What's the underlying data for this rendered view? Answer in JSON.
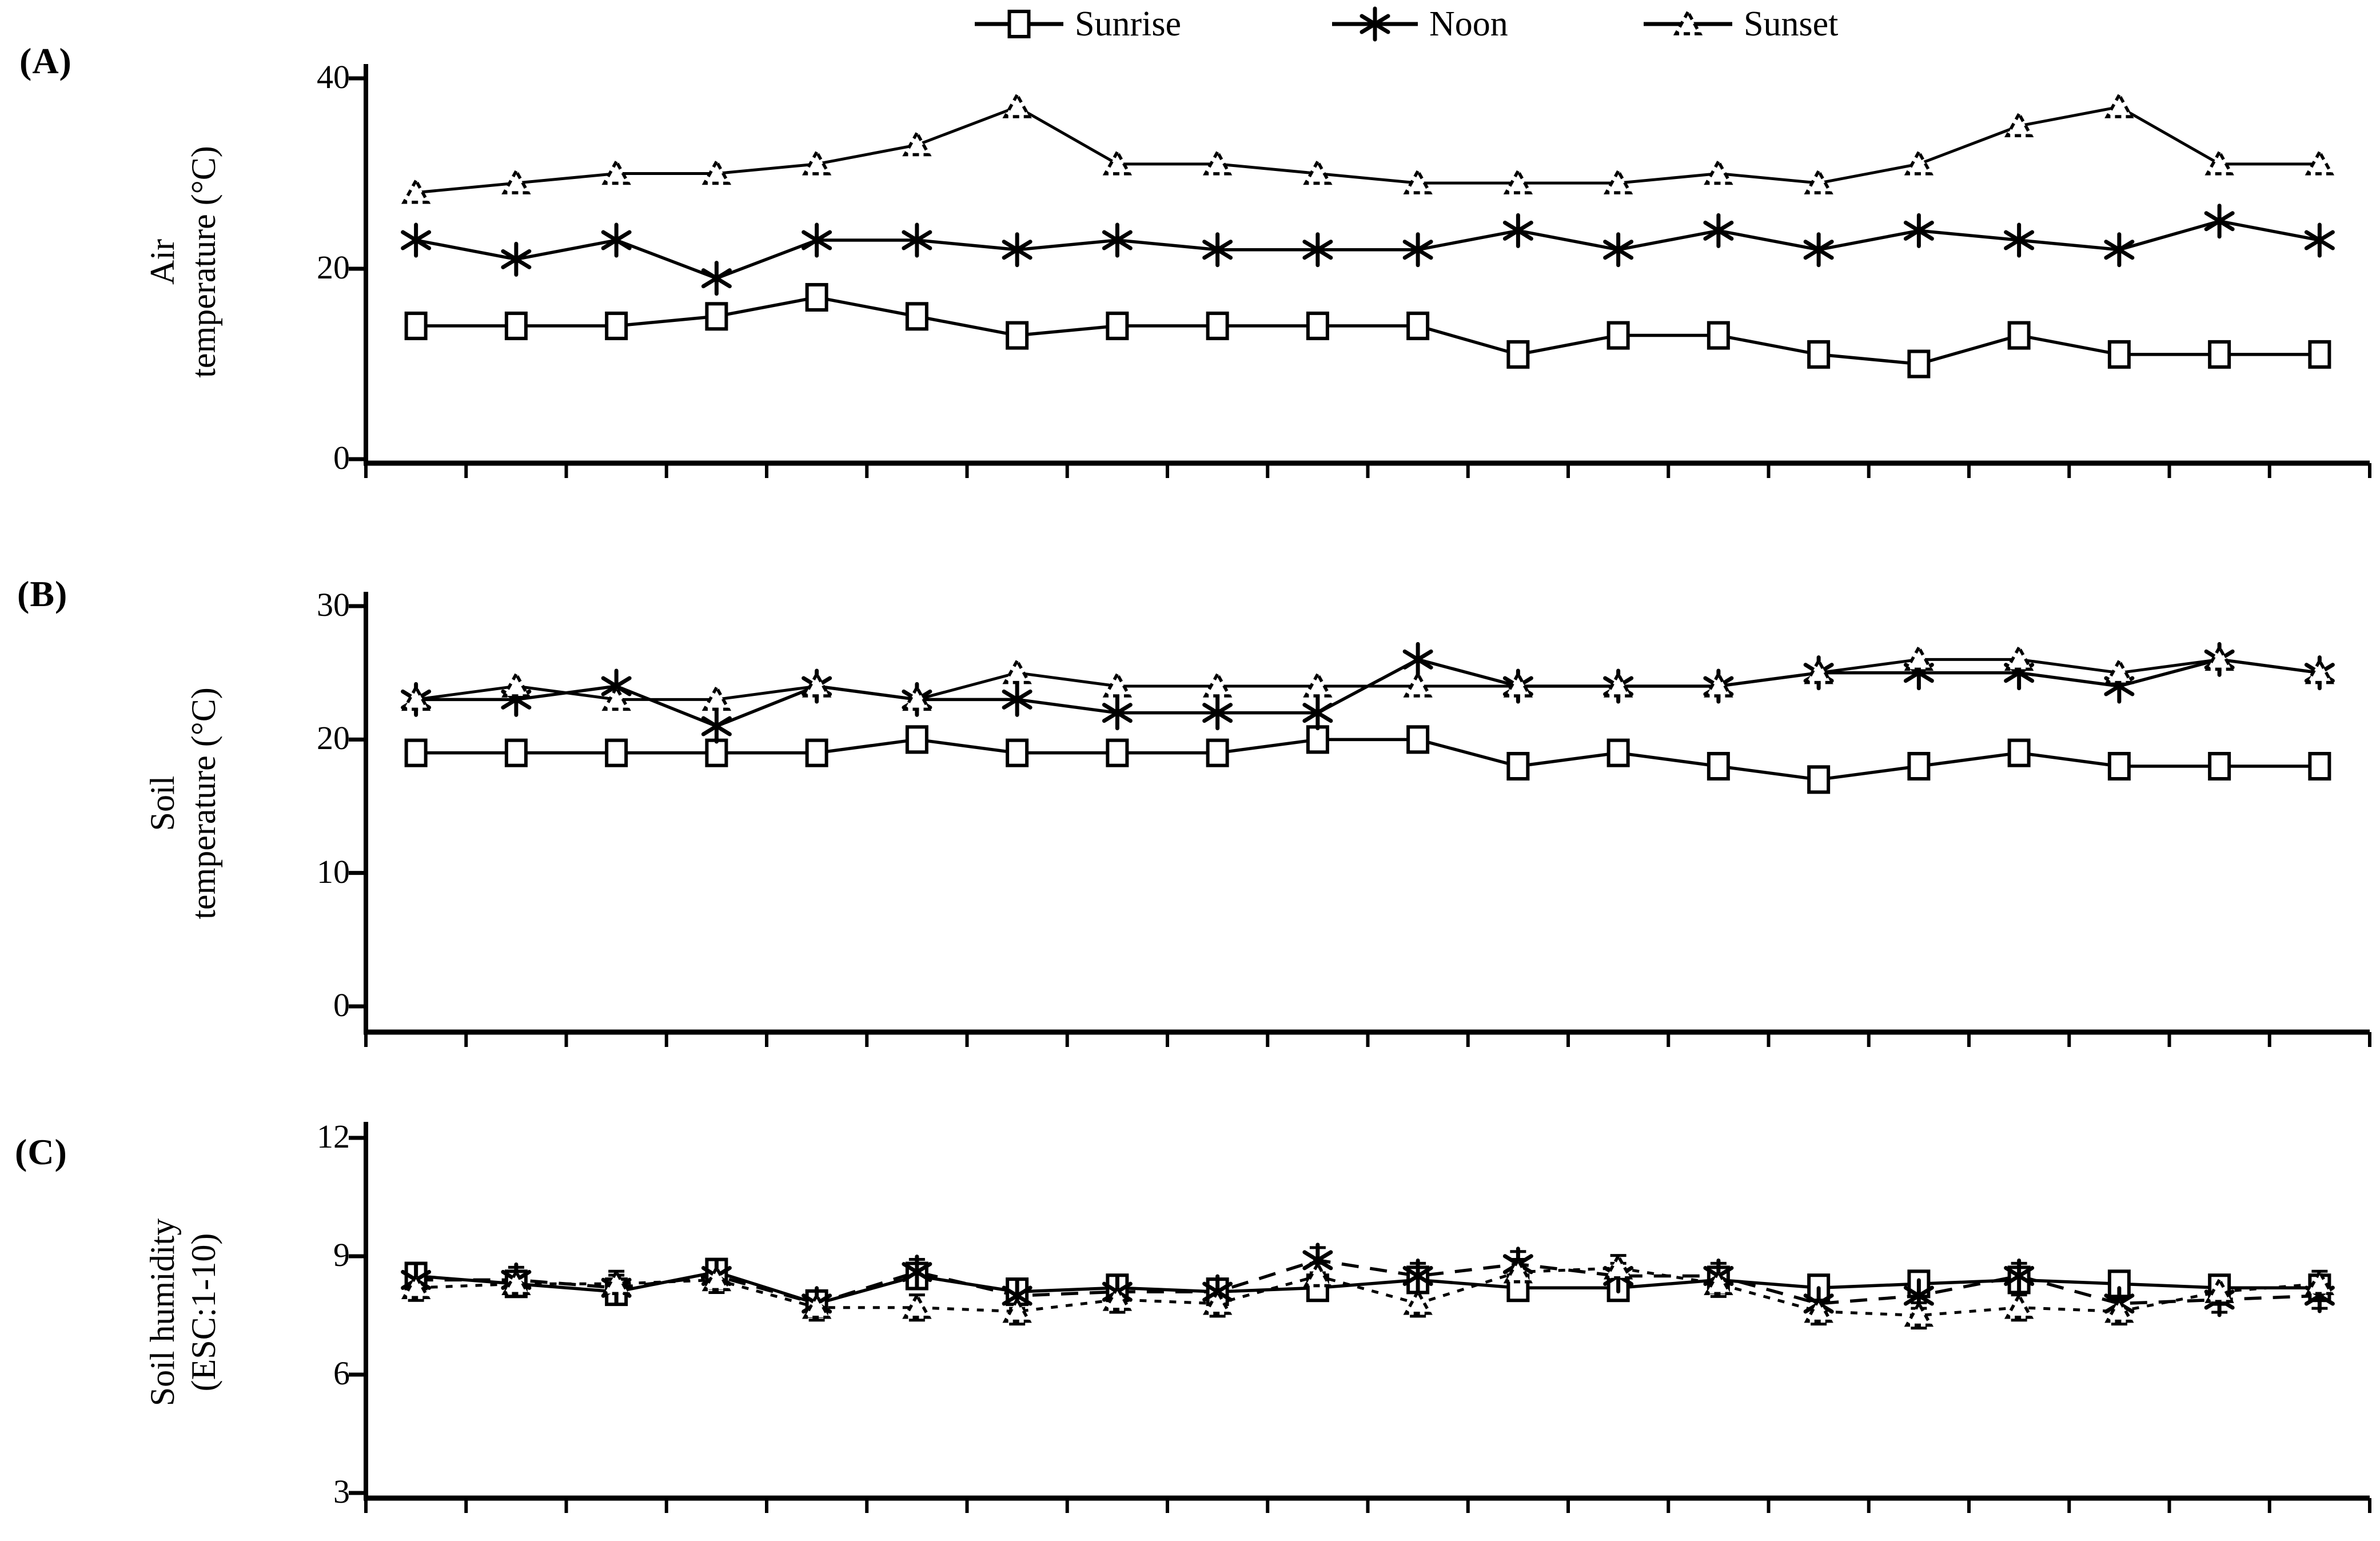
{
  "legend": {
    "items": [
      {
        "label": "Sunrise",
        "marker": "square-icon"
      },
      {
        "label": "Noon",
        "marker": "asterisk-icon"
      },
      {
        "label": "Sunset",
        "marker": "triangle-icon"
      }
    ]
  },
  "chart_data": [
    {
      "type": "line",
      "panel_label": "(A)",
      "ylabel_lines": [
        "Air",
        "temperature (°C)"
      ],
      "yticks": [
        "40",
        "20",
        "0"
      ],
      "ylim": [
        0,
        40
      ],
      "x_points": 20,
      "x_tick_labels_visible": false,
      "grid": false,
      "legend_position": "top-center",
      "series": [
        {
          "name": "Sunrise",
          "values": [
            14,
            14,
            14,
            15,
            17,
            15,
            13,
            14,
            14,
            14,
            14,
            11,
            13,
            13,
            11,
            10,
            13,
            11,
            11,
            11
          ]
        },
        {
          "name": "Noon",
          "values": [
            23,
            21,
            23,
            19,
            23,
            23,
            22,
            23,
            22,
            22,
            22,
            24,
            22,
            24,
            22,
            24,
            23,
            22,
            25,
            23
          ]
        },
        {
          "name": "Sunset",
          "values": [
            28,
            29,
            30,
            30,
            31,
            33,
            37,
            31,
            31,
            30,
            29,
            29,
            29,
            30,
            29,
            31,
            35,
            37,
            31,
            31
          ]
        }
      ]
    },
    {
      "type": "line",
      "panel_label": "(B)",
      "ylabel_lines": [
        "Soil",
        "temperature (°C)"
      ],
      "yticks": [
        "30",
        "20",
        "10",
        "0"
      ],
      "ylim": [
        0,
        30
      ],
      "x_points": 20,
      "x_tick_labels_visible": false,
      "grid": false,
      "series": [
        {
          "name": "Sunrise",
          "values": [
            19,
            19,
            19,
            19,
            19,
            20,
            19,
            19,
            19,
            20,
            20,
            18,
            19,
            18,
            17,
            18,
            19,
            18,
            18,
            18
          ]
        },
        {
          "name": "Noon",
          "values": [
            23,
            23,
            24,
            21,
            24,
            23,
            23,
            22,
            22,
            22,
            26,
            24,
            24,
            24,
            25,
            25,
            25,
            24,
            26,
            25
          ]
        },
        {
          "name": "Sunset",
          "values": [
            23,
            24,
            23,
            23,
            24,
            23,
            25,
            24,
            24,
            24,
            24,
            24,
            24,
            24,
            25,
            26,
            26,
            25,
            26,
            25
          ]
        }
      ]
    },
    {
      "type": "line",
      "panel_label": "(C)",
      "ylabel_lines": [
        "Soil humidity",
        "(ESC:1-10)"
      ],
      "yticks": [
        "12",
        "9",
        "6",
        "3"
      ],
      "ylim": [
        3,
        12
      ],
      "x_points": 20,
      "x_tick_labels_visible": false,
      "grid": false,
      "error_bars": 0.32,
      "series": [
        {
          "name": "Sunrise",
          "values": [
            8.5,
            8.3,
            8.1,
            8.6,
            7.8,
            8.5,
            8.1,
            8.2,
            8.1,
            8.2,
            8.4,
            8.2,
            8.2,
            8.4,
            8.2,
            8.3,
            8.4,
            8.3,
            8.2,
            8.2
          ]
        },
        {
          "name": "Noon",
          "values": [
            8.4,
            8.4,
            8.2,
            8.5,
            7.8,
            8.6,
            8.0,
            8.1,
            8.1,
            8.9,
            8.5,
            8.8,
            8.5,
            8.5,
            7.8,
            8.0,
            8.5,
            7.8,
            7.9,
            8.0
          ]
        },
        {
          "name": "Sunset",
          "values": [
            8.2,
            8.3,
            8.3,
            8.4,
            7.7,
            7.7,
            7.6,
            7.9,
            7.8,
            8.5,
            7.8,
            8.6,
            8.7,
            8.3,
            7.6,
            7.5,
            7.7,
            7.6,
            8.1,
            8.3
          ]
        }
      ]
    }
  ]
}
